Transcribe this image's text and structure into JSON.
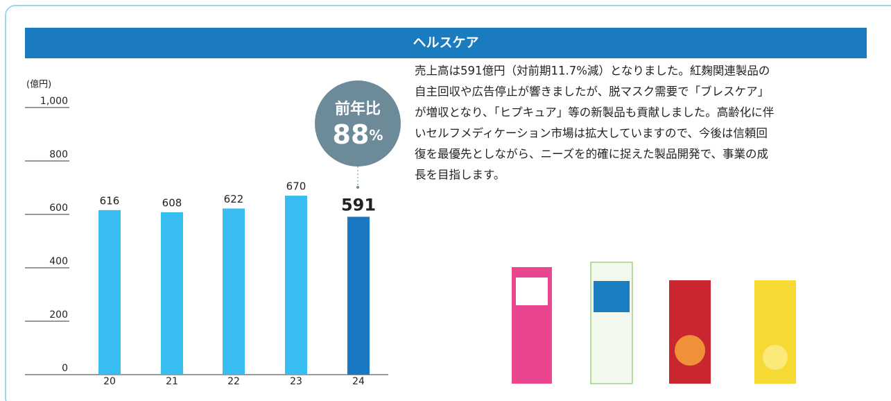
{
  "header": {
    "title": "ヘルスケア"
  },
  "chart_data": {
    "type": "bar",
    "unit_label": "(億円)",
    "categories": [
      "20",
      "21",
      "22",
      "23",
      "24"
    ],
    "values": [
      616,
      608,
      622,
      670,
      591
    ],
    "colors": [
      "#38bdf0",
      "#38bdf0",
      "#38bdf0",
      "#38bdf0",
      "#1a78c2"
    ],
    "ylim": [
      0,
      1000
    ],
    "yticks": [
      0,
      200,
      400,
      600,
      800,
      {
        "value": 1000,
        "label": "1,000"
      }
    ]
  },
  "badge": {
    "label": "前年比",
    "value": 88,
    "unit": "%"
  },
  "body": {
    "lines": [
      "売上高は591億円（対前期11.7%減）となりました。紅麹関連製品の",
      "自主回収や広告停止が響きましたが、脱マスク需要で「ブレスケア」",
      "が増収となり、「ヒプキュア」等の新製品も貢献しました。高齢化に伴",
      "いセルフメディケーション市場は拡大していますので、今後は信頼回",
      "復を最優先としながら、ニーズを的確に捉えた製品開発で、事業の成",
      "長を目指します。"
    ]
  }
}
